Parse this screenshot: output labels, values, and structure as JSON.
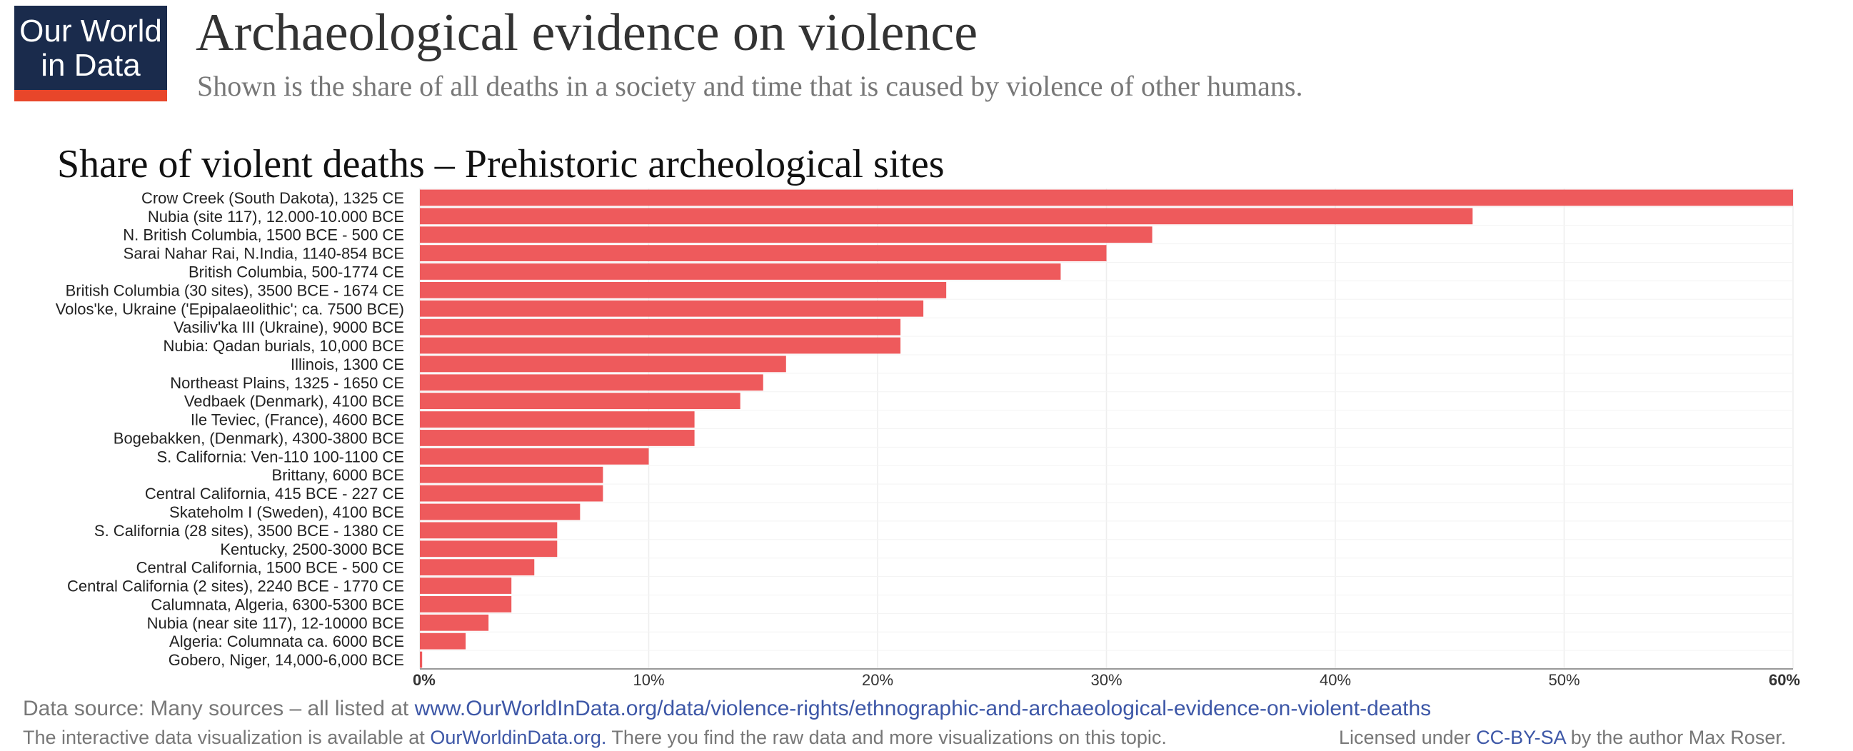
{
  "logo": {
    "line1": "Our World",
    "line2": "in Data"
  },
  "header": {
    "title": "Archaeological evidence on violence",
    "subtitle": "Shown is the share of all deaths in a society and time that is caused by violence of other humans."
  },
  "chart_data": {
    "type": "hbar",
    "title": "Share of violent deaths – Prehistoric archeological sites",
    "categories": [
      "Crow Creek (South Dakota), 1325 CE",
      "Nubia (site 117), 12.000-10.000 BCE",
      "N. British Columbia, 1500 BCE - 500 CE",
      "Sarai Nahar Rai, N.India, 1140-854 BCE",
      "British Columbia, 500-1774 CE",
      "British Columbia (30 sites), 3500 BCE - 1674 CE",
      "Volos'ke, Ukraine ('Epipalaeolithic'; ca. 7500 BCE)",
      "Vasiliv'ka III (Ukraine), 9000 BCE",
      "Nubia: Qadan burials, 10,000 BCE",
      "Illinois, 1300 CE",
      "Northeast Plains, 1325 - 1650 CE",
      "Vedbaek (Denmark), 4100 BCE",
      "Ile Teviec, (France), 4600 BCE",
      "Bogebakken, (Denmark), 4300-3800 BCE",
      "S. California: Ven-110 100-1100 CE",
      "Brittany, 6000 BCE",
      "Central California, 415 BCE - 227 CE",
      "Skateholm I (Sweden), 4100 BCE",
      "S. California (28 sites), 3500 BCE - 1380 CE",
      "Kentucky, 2500-3000 BCE",
      "Central California, 1500 BCE - 500 CE",
      "Central California (2 sites), 2240 BCE - 1770 CE",
      "Calumnata, Algeria, 6300-5300 BCE",
      "Nubia (near site 117), 12-10000 BCE",
      "Algeria: Columnata ca. 6000 BCE",
      "Gobero, Niger, 14,000-6,000 BCE"
    ],
    "values": [
      60,
      46,
      32,
      30,
      28,
      23,
      22,
      21,
      21,
      16,
      15,
      14,
      12,
      12,
      10,
      8,
      8,
      7,
      6,
      6,
      5,
      4,
      4,
      3,
      2,
      0.1
    ],
    "color": "#ee5a5c",
    "xlim": [
      0,
      60
    ],
    "xticks": [
      {
        "value": 0,
        "label": "0%"
      },
      {
        "value": 10,
        "label": "10%"
      },
      {
        "value": 20,
        "label": "20%"
      },
      {
        "value": 30,
        "label": "30%"
      },
      {
        "value": 40,
        "label": "40%"
      },
      {
        "value": 50,
        "label": "50%"
      },
      {
        "value": 60,
        "label": "60%"
      }
    ],
    "grid": true
  },
  "footer": {
    "source_prefix": "Data source: Many sources – all listed at ",
    "source_link": "www.OurWorldInData.org/data/violence-rights/ethnographic-and-archaeological-evidence-on-violent-deaths",
    "note_prefix": "The interactive data visualization is available at ",
    "note_link": "OurWorldinData.org.",
    "note_suffix": " There you find the raw data and more visualizations on this topic.",
    "license_prefix": "Licensed under ",
    "license_link": "CC-BY-SA",
    "license_suffix": " by the author Max Roser."
  }
}
